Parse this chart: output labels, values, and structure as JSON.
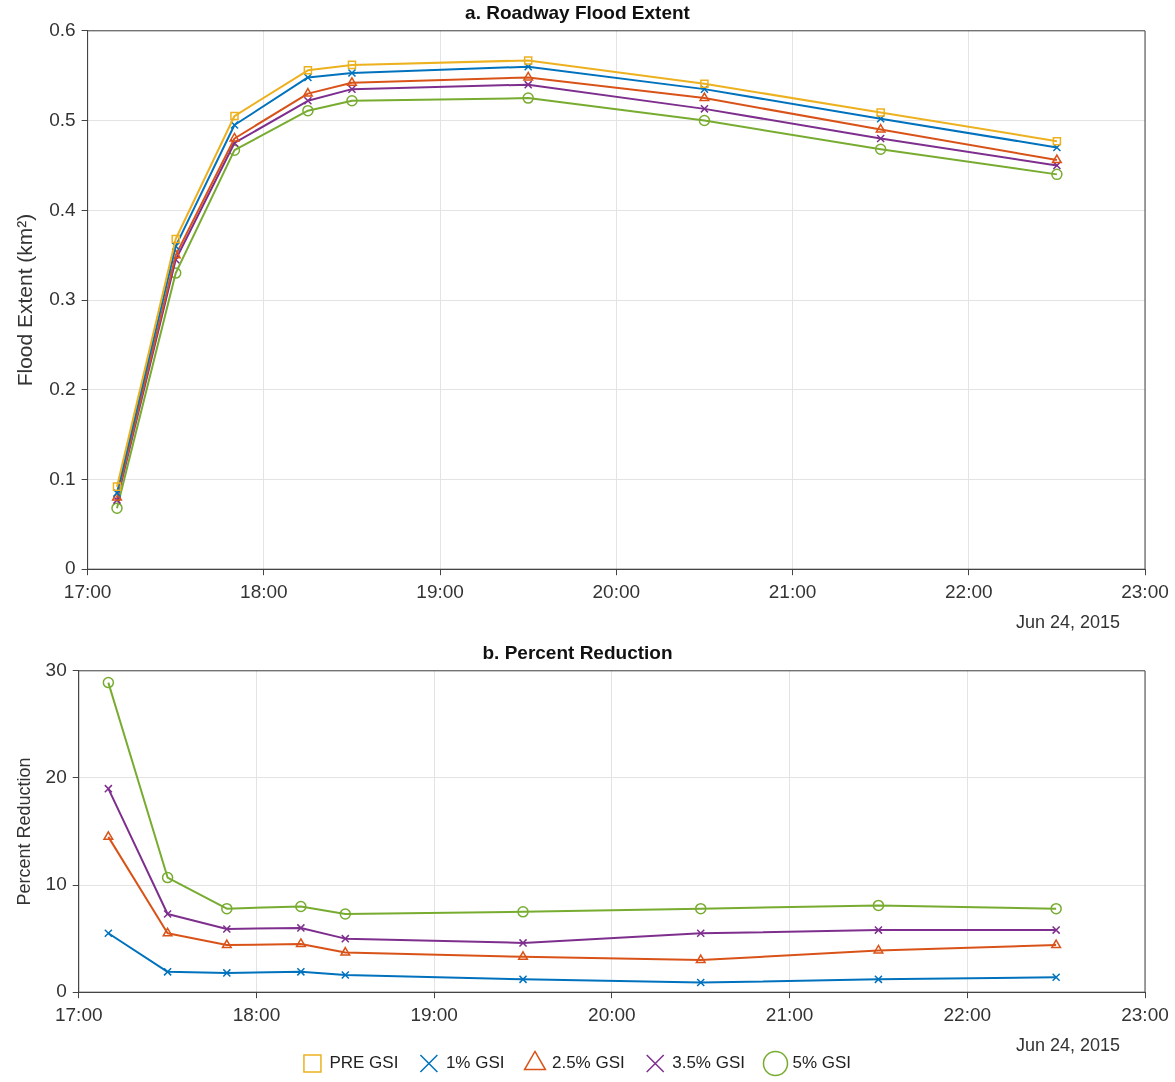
{
  "chart_data": [
    {
      "type": "line",
      "title": "a. Roadway Flood Extent",
      "ylabel": "Flood Extent (km²)",
      "x": [
        17.1667,
        17.5,
        17.8333,
        18.25,
        18.5,
        19.5,
        20.5,
        21.5,
        22.5
      ],
      "series": [
        {
          "color": "#edb120",
          "marker": "square",
          "values": [
            0.092,
            0.368,
            0.505,
            0.556,
            0.562,
            0.567,
            0.541,
            0.509,
            0.477
          ]
        },
        {
          "color": "#0072bd",
          "marker": "cross",
          "values": [
            0.085,
            0.36,
            0.495,
            0.548,
            0.553,
            0.56,
            0.535,
            0.502,
            0.47
          ]
        },
        {
          "color": "#d95319",
          "marker": "triangle",
          "values": [
            0.08,
            0.35,
            0.48,
            0.53,
            0.542,
            0.548,
            0.525,
            0.49,
            0.456
          ]
        },
        {
          "color": "#7e2f8e",
          "marker": "cross",
          "values": [
            0.077,
            0.345,
            0.475,
            0.522,
            0.535,
            0.54,
            0.513,
            0.48,
            0.45
          ]
        },
        {
          "color": "#77ac30",
          "marker": "circle",
          "values": [
            0.068,
            0.33,
            0.467,
            0.511,
            0.522,
            0.525,
            0.5,
            0.468,
            0.44
          ]
        }
      ],
      "xlim": [
        17,
        23
      ],
      "xticks": [
        {
          "value": 17,
          "label": "17:00"
        },
        {
          "value": 18,
          "label": "18:00"
        },
        {
          "value": 19,
          "label": "19:00"
        },
        {
          "value": 20,
          "label": "20:00"
        },
        {
          "value": 21,
          "label": "21:00"
        },
        {
          "value": 22,
          "label": "22:00"
        },
        {
          "value": 23,
          "label": "23:00"
        }
      ],
      "ylim": [
        0,
        0.6
      ],
      "yticks": [
        0,
        0.1,
        0.2,
        0.3,
        0.4,
        0.5,
        0.6
      ],
      "grid": true,
      "legend": false,
      "annotations": [
        "Jun 24, 2015"
      ]
    },
    {
      "type": "line",
      "title": "b. Percent Reduction",
      "ylabel": "Percent Reduction",
      "x": [
        17.1667,
        17.5,
        17.8333,
        18.25,
        18.5,
        19.5,
        20.5,
        21.5,
        22.5
      ],
      "series": [
        {
          "name": "PRE GSI",
          "color": "#edb120",
          "marker": "square",
          "values": [
            null,
            null,
            null,
            null,
            null,
            null,
            null,
            null,
            null
          ]
        },
        {
          "name": "1% GSI",
          "color": "#0072bd",
          "marker": "cross",
          "values": [
            5.5,
            1.9,
            1.8,
            1.9,
            1.6,
            1.2,
            0.9,
            1.2,
            1.4
          ]
        },
        {
          "name": "2.5% GSI",
          "color": "#d95319",
          "marker": "triangle",
          "values": [
            14.5,
            5.5,
            4.4,
            4.5,
            3.7,
            3.3,
            3.0,
            3.9,
            4.4
          ]
        },
        {
          "name": "3.5% GSI",
          "color": "#7e2f8e",
          "marker": "cross",
          "values": [
            19,
            7.3,
            5.9,
            6.0,
            5.0,
            4.6,
            5.5,
            5.8,
            5.8
          ]
        },
        {
          "name": "5% GSI",
          "color": "#77ac30",
          "marker": "circle",
          "values": [
            28.9,
            10.7,
            7.8,
            8.0,
            7.3,
            7.5,
            7.8,
            8.1,
            7.8
          ]
        }
      ],
      "xlim": [
        17,
        23
      ],
      "xticks": [
        {
          "value": 17,
          "label": "17:00"
        },
        {
          "value": 18,
          "label": "18:00"
        },
        {
          "value": 19,
          "label": "19:00"
        },
        {
          "value": 20,
          "label": "20:00"
        },
        {
          "value": 21,
          "label": "21:00"
        },
        {
          "value": 22,
          "label": "22:00"
        },
        {
          "value": 23,
          "label": "23:00"
        }
      ],
      "ylim": [
        0,
        30
      ],
      "yticks": [
        0,
        10,
        20,
        30
      ],
      "grid": true,
      "legend": "bottom",
      "annotations": [
        "Jun 24, 2015"
      ]
    }
  ]
}
